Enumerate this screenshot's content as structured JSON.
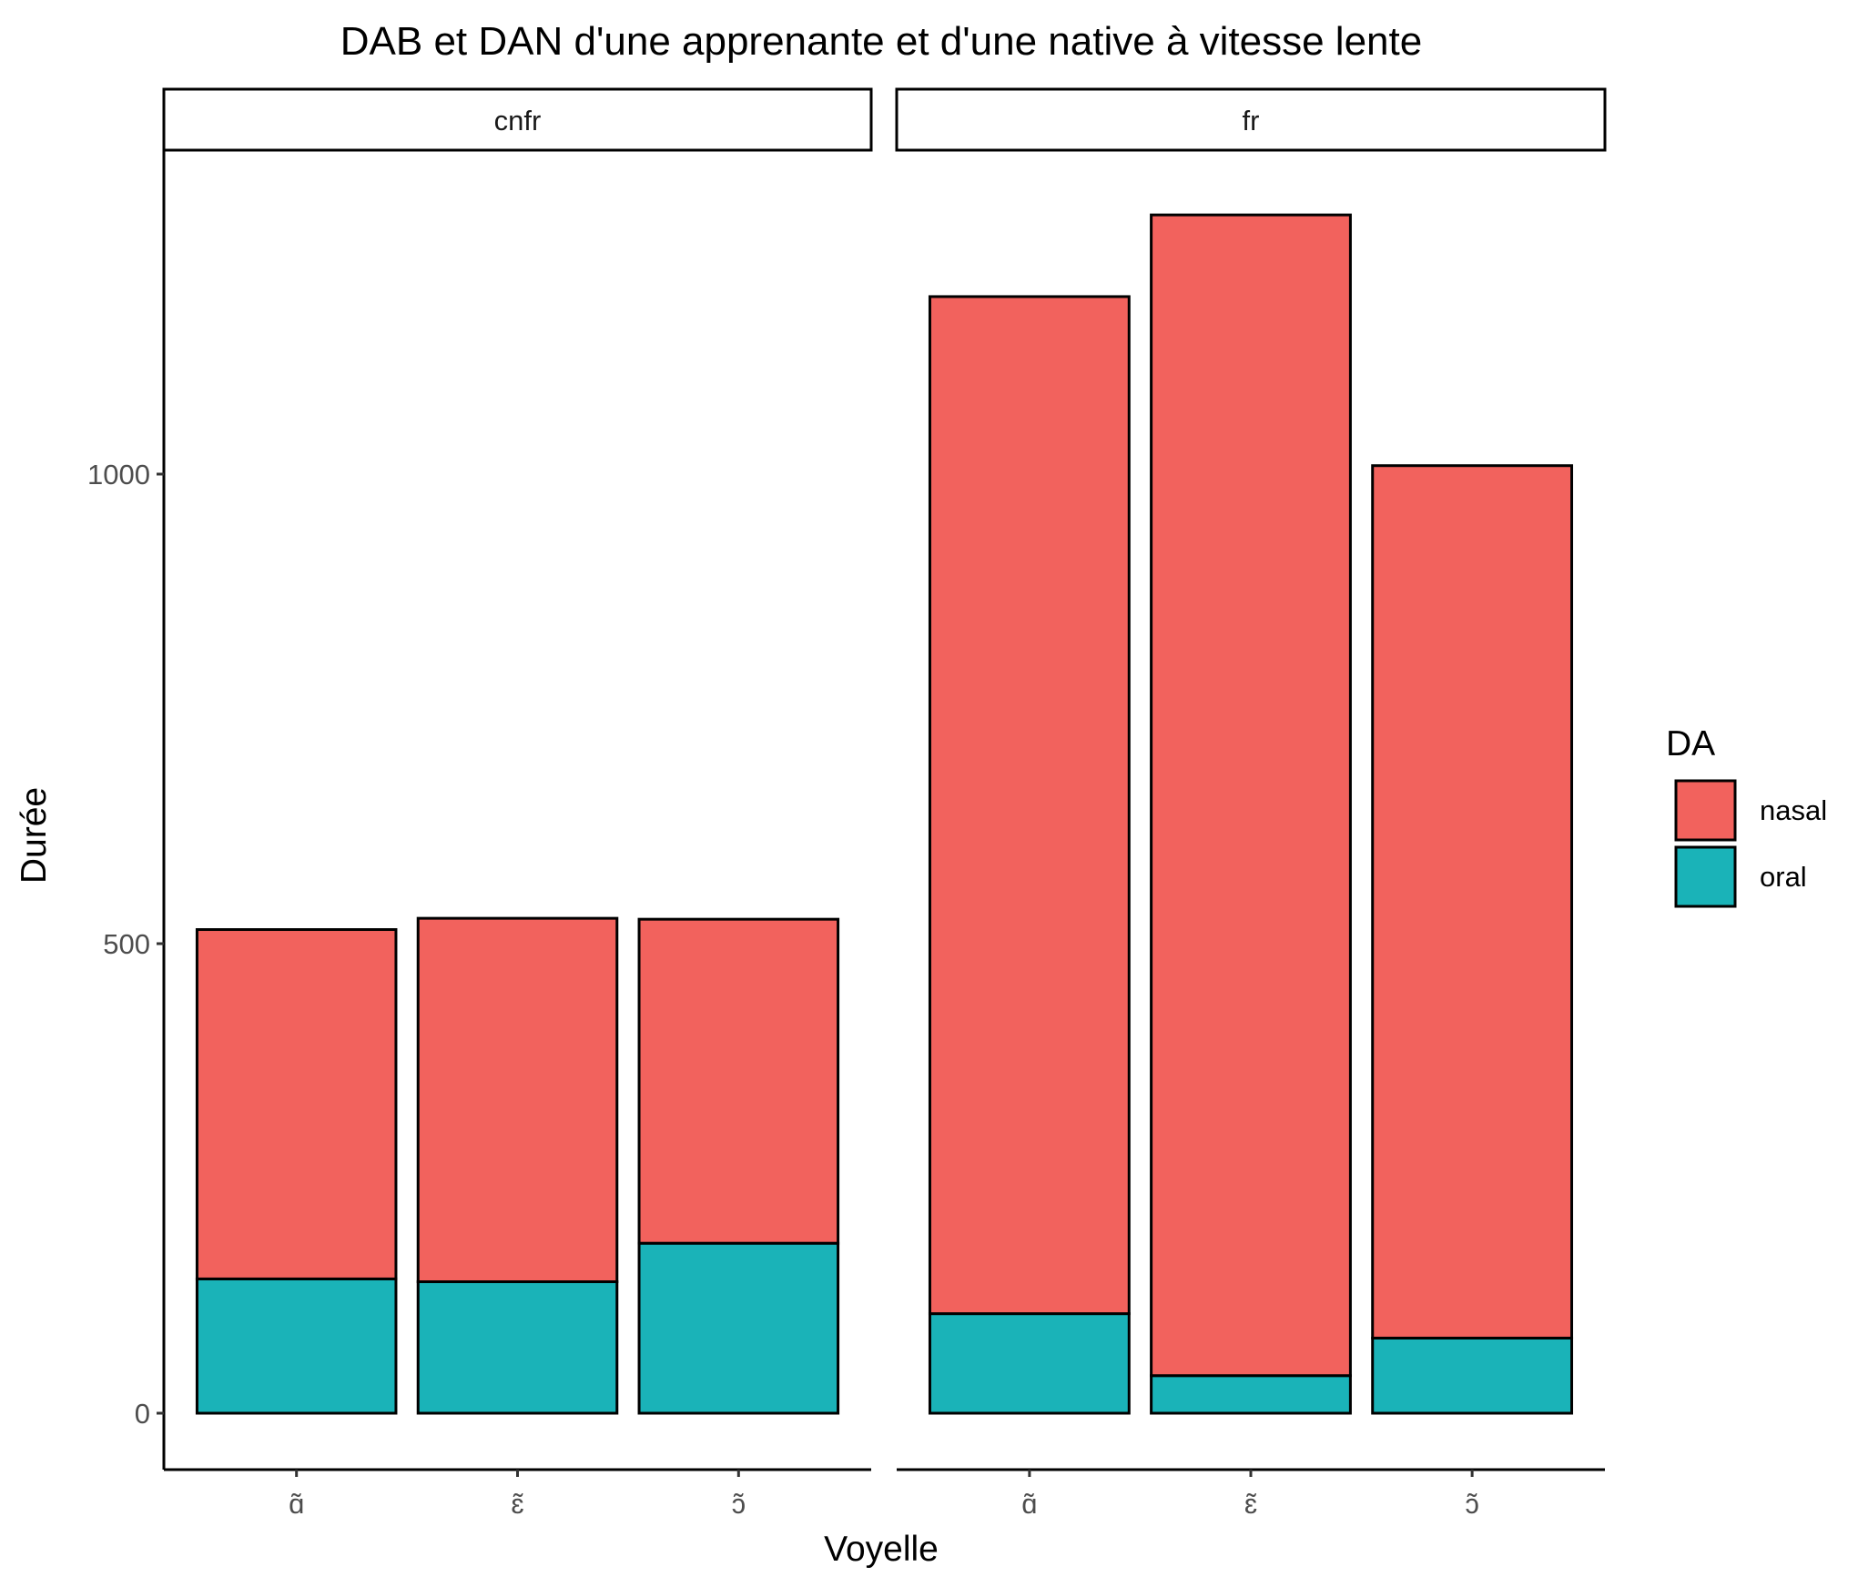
{
  "chart_data": {
    "type": "bar",
    "stacked": true,
    "title": "DAB et DAN d'une apprenante et d'une native à vitesse lente",
    "xlabel": "Voyelle",
    "ylabel": "Durée",
    "y_ticks": [
      0,
      500,
      1000
    ],
    "ylim": [
      -60,
      1330
    ],
    "grid": false,
    "legend": {
      "title": "DA",
      "position": "right"
    },
    "series_colors": {
      "nasal": "#F2625D",
      "oral": "#1AB3B8"
    },
    "facets": [
      {
        "label": "cnfr",
        "categories": [
          "ɑ̃",
          "ɛ̃",
          "ɔ̃"
        ],
        "series": [
          {
            "name": "oral",
            "values": [
              143,
              140,
              181
            ]
          },
          {
            "name": "nasal",
            "values": [
              372,
              387,
              345
            ]
          }
        ]
      },
      {
        "label": "fr",
        "categories": [
          "ɑ̃",
          "ɛ̃",
          "ɔ̃"
        ],
        "series": [
          {
            "name": "oral",
            "values": [
              106,
              40,
              80
            ]
          },
          {
            "name": "nasal",
            "values": [
              1083,
              1236,
              929
            ]
          }
        ]
      }
    ]
  }
}
